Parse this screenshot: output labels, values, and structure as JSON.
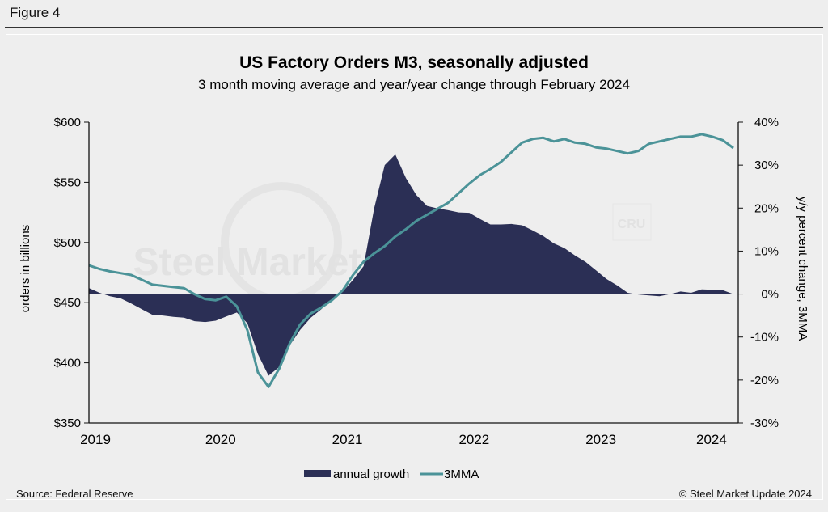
{
  "figure_label": "Figure 4",
  "source": "Source: Federal Reserve",
  "copyright": "© Steel Market Update 2024",
  "watermark": {
    "main": "Steel Market Update",
    "badge": "CRU"
  },
  "colors": {
    "area": "#2b2f55",
    "line": "#4b9398",
    "axis": "#111111",
    "background": "#eeeeee"
  },
  "chart_data": {
    "type": "line+area",
    "title": "US Factory Orders M3, seasonally adjusted",
    "subtitle": "3 month moving average and year/year change through February 2024",
    "ylabel": "orders in billions",
    "y2label": "y/y percent change, 3MMA",
    "ylim": [
      350,
      600
    ],
    "y2lim": [
      -30,
      40
    ],
    "yticks": [
      "$350",
      "$400",
      "$450",
      "$500",
      "$550",
      "$600"
    ],
    "y2ticks": [
      "-30%",
      "-20%",
      "-10%",
      "0%",
      "10%",
      "20%",
      "30%",
      "40%"
    ],
    "xticks": [
      "2019",
      "2020",
      "2021",
      "2022",
      "2023",
      "2024"
    ],
    "x_start": "2019-01",
    "x_end": "2024-02",
    "frequency": "monthly",
    "legend": [
      "annual growth",
      "3MMA"
    ],
    "legend_position": "bottom",
    "series": [
      {
        "name": "annual growth",
        "axis": "right",
        "kind": "area",
        "values": [
          1.4,
          0.3,
          -0.5,
          -1.0,
          -2.2,
          -3.5,
          -4.8,
          -5.0,
          -5.3,
          -5.5,
          -6.3,
          -6.5,
          -6.2,
          -5.2,
          -4.3,
          -6.8,
          -14,
          -19,
          -17,
          -12,
          -8.3,
          -5.5,
          -3.5,
          -1.3,
          0.5,
          3.3,
          6.5,
          20,
          30,
          32.5,
          27,
          23,
          20.5,
          19.9,
          19.5,
          19,
          18.9,
          17.5,
          16.2,
          16.2,
          16.3,
          16.0,
          14.8,
          13.5,
          11.8,
          10.7,
          9,
          7.5,
          5.5,
          3.5,
          2,
          0.3,
          -0.1,
          -0.3,
          -0.5,
          0,
          0.6,
          0.3,
          1.1,
          1.0,
          0.9,
          0
        ]
      },
      {
        "name": "3MMA",
        "axis": "left",
        "kind": "line",
        "values": [
          481,
          478,
          476,
          474.5,
          473,
          469,
          465,
          464,
          463,
          462,
          457,
          453,
          452,
          455,
          447,
          427,
          392,
          380,
          395,
          416,
          432,
          441,
          446,
          452,
          460,
          473,
          484,
          491,
          497,
          505,
          511,
          518,
          523,
          528,
          533,
          541,
          549,
          556,
          561,
          567,
          575,
          583,
          586,
          587,
          584,
          586,
          583,
          582,
          579,
          578,
          576,
          574,
          576,
          582,
          584,
          586,
          588,
          588,
          590,
          588,
          585,
          578.5
        ]
      }
    ]
  }
}
